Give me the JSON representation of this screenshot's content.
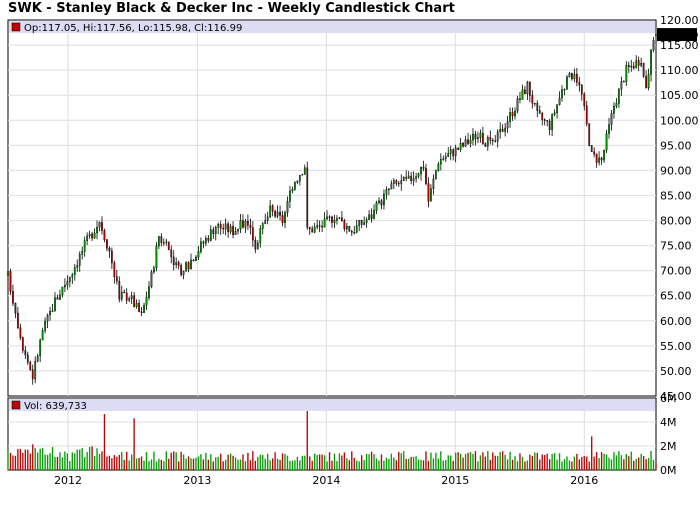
{
  "title": "SWK - Stanley Black & Decker Inc - Weekly Candlestick Chart",
  "price_legend": "Op:117.05, Hi:117.56, Lo:115.98, Cl:116.99",
  "last_price_label": "116.99",
  "volume_legend": "Vol: 639,733",
  "colors": {
    "up": "#00a000",
    "down": "#c00000",
    "legend_band": "#dcdcf4",
    "grid": "#dddddd",
    "label_bg": "#000000"
  },
  "chart_data": [
    {
      "type": "candlestick",
      "title": "SWK - Stanley Black & Decker Inc - Weekly Candlestick Chart",
      "y_ticks": [
        "120.00",
        "115.00",
        "110.00",
        "105.00",
        "100.00",
        "95.00",
        "90.00",
        "85.00",
        "80.00",
        "75.00",
        "70.00",
        "65.00",
        "60.00",
        "55.00",
        "50.00",
        "45.00"
      ],
      "ylim": [
        45,
        120
      ],
      "x_ticks": [
        "2012",
        "2013",
        "2014",
        "2015",
        "2016"
      ],
      "x_tick_dates": [
        "2012-01-01",
        "2013-01-01",
        "2014-01-01",
        "2015-01-01",
        "2016-01-01"
      ],
      "xlim": [
        "2011-07-15",
        "2016-07-22"
      ],
      "grid": true,
      "last": {
        "open": 117.05,
        "high": 117.56,
        "low": 115.98,
        "close": 116.99
      },
      "trend_closes": [
        {
          "date": "2011-07-15",
          "close": 69
        },
        {
          "date": "2011-08-05",
          "close": 62
        },
        {
          "date": "2011-08-26",
          "close": 55
        },
        {
          "date": "2011-09-23",
          "close": 49
        },
        {
          "date": "2011-10-21",
          "close": 58
        },
        {
          "date": "2011-11-25",
          "close": 64
        },
        {
          "date": "2012-01-13",
          "close": 70
        },
        {
          "date": "2012-02-24",
          "close": 76
        },
        {
          "date": "2012-03-30",
          "close": 80
        },
        {
          "date": "2012-04-27",
          "close": 74
        },
        {
          "date": "2012-05-25",
          "close": 65
        },
        {
          "date": "2012-06-22",
          "close": 65
        },
        {
          "date": "2012-07-27",
          "close": 61
        },
        {
          "date": "2012-08-24",
          "close": 69
        },
        {
          "date": "2012-09-14",
          "close": 77
        },
        {
          "date": "2012-10-12",
          "close": 74
        },
        {
          "date": "2012-11-16",
          "close": 69
        },
        {
          "date": "2012-12-21",
          "close": 73
        },
        {
          "date": "2013-02-22",
          "close": 79
        },
        {
          "date": "2013-04-12",
          "close": 78
        },
        {
          "date": "2013-05-24",
          "close": 80
        },
        {
          "date": "2013-06-14",
          "close": 75
        },
        {
          "date": "2013-07-26",
          "close": 82
        },
        {
          "date": "2013-08-30",
          "close": 80
        },
        {
          "date": "2013-10-04",
          "close": 88
        },
        {
          "date": "2013-11-01",
          "close": 91
        },
        {
          "date": "2013-11-08",
          "close": 78
        },
        {
          "date": "2013-12-20",
          "close": 79
        },
        {
          "date": "2014-01-24",
          "close": 81
        },
        {
          "date": "2014-03-14",
          "close": 78
        },
        {
          "date": "2014-05-09",
          "close": 81
        },
        {
          "date": "2014-07-04",
          "close": 87
        },
        {
          "date": "2014-08-22",
          "close": 88
        },
        {
          "date": "2014-10-03",
          "close": 91
        },
        {
          "date": "2014-10-17",
          "close": 84
        },
        {
          "date": "2014-11-14",
          "close": 92
        },
        {
          "date": "2015-01-23",
          "close": 95
        },
        {
          "date": "2015-02-27",
          "close": 97
        },
        {
          "date": "2015-04-17",
          "close": 95
        },
        {
          "date": "2015-06-05",
          "close": 101
        },
        {
          "date": "2015-07-24",
          "close": 107
        },
        {
          "date": "2015-08-21",
          "close": 101
        },
        {
          "date": "2015-09-25",
          "close": 99
        },
        {
          "date": "2015-10-30",
          "close": 106
        },
        {
          "date": "2015-12-04",
          "close": 110
        },
        {
          "date": "2015-12-25",
          "close": 105
        },
        {
          "date": "2016-01-22",
          "close": 93
        },
        {
          "date": "2016-02-19",
          "close": 92
        },
        {
          "date": "2016-03-25",
          "close": 103
        },
        {
          "date": "2016-04-29",
          "close": 110
        },
        {
          "date": "2016-06-03",
          "close": 112
        },
        {
          "date": "2016-06-24",
          "close": 107
        },
        {
          "date": "2016-07-08",
          "close": 113
        },
        {
          "date": "2016-07-22",
          "close": 117
        }
      ]
    },
    {
      "type": "bar",
      "y_ticks": [
        "6M",
        "4M",
        "2M",
        "0M"
      ],
      "ylim": [
        0,
        6000000
      ],
      "x_ticks": [
        "2012",
        "2013",
        "2014",
        "2015",
        "2016"
      ],
      "last_volume": 639733,
      "spikes": [
        {
          "date": "2012-07-06",
          "value": 4300000
        },
        {
          "date": "2012-04-13",
          "value": 4300000
        },
        {
          "date": "2013-11-08",
          "value": 5600000
        },
        {
          "date": "2016-01-22",
          "value": 2800000
        }
      ]
    }
  ]
}
